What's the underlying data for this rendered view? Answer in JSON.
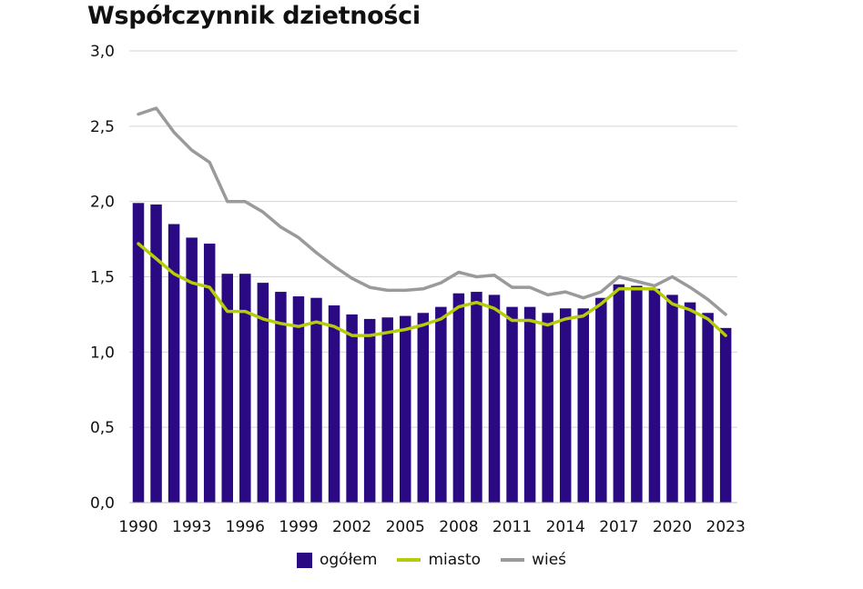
{
  "chart_data": {
    "type": "bar",
    "title": "Współczynnik dzietności",
    "xlabel": "",
    "ylabel": "",
    "ylim": [
      0,
      3.0
    ],
    "y_ticks": [
      "0,0",
      "0,5",
      "1,0",
      "1,5",
      "2,0",
      "2,5",
      "3,0"
    ],
    "x_tick_labels": [
      "1990",
      "1993",
      "1996",
      "1999",
      "2002",
      "2005",
      "2008",
      "2011",
      "2014",
      "2017",
      "2020",
      "2023"
    ],
    "categories": [
      1990,
      1991,
      1992,
      1993,
      1994,
      1995,
      1996,
      1997,
      1998,
      1999,
      2000,
      2001,
      2002,
      2003,
      2004,
      2005,
      2006,
      2007,
      2008,
      2009,
      2010,
      2011,
      2012,
      2013,
      2014,
      2015,
      2016,
      2017,
      2018,
      2019,
      2020,
      2021,
      2022,
      2023
    ],
    "grid": true,
    "legend_position": "bottom",
    "series": [
      {
        "name": "ogółem",
        "kind": "bar",
        "color": "#2a0a83",
        "values": [
          1.99,
          1.98,
          1.85,
          1.76,
          1.72,
          1.52,
          1.52,
          1.46,
          1.4,
          1.37,
          1.36,
          1.31,
          1.25,
          1.22,
          1.23,
          1.24,
          1.26,
          1.3,
          1.39,
          1.4,
          1.38,
          1.3,
          1.3,
          1.26,
          1.29,
          1.29,
          1.36,
          1.45,
          1.44,
          1.42,
          1.38,
          1.33,
          1.26,
          1.16
        ]
      },
      {
        "name": "miasto",
        "kind": "line",
        "color": "#b6cc0a",
        "values": [
          1.72,
          1.62,
          1.52,
          1.46,
          1.43,
          1.27,
          1.27,
          1.22,
          1.19,
          1.17,
          1.2,
          1.17,
          1.11,
          1.11,
          1.13,
          1.15,
          1.18,
          1.22,
          1.3,
          1.33,
          1.29,
          1.21,
          1.21,
          1.18,
          1.22,
          1.24,
          1.32,
          1.42,
          1.42,
          1.42,
          1.32,
          1.28,
          1.22,
          1.11
        ]
      },
      {
        "name": "wieś",
        "kind": "line",
        "color": "#9a9a9a",
        "values": [
          2.58,
          2.62,
          2.46,
          2.34,
          2.26,
          2.0,
          2.0,
          1.93,
          1.83,
          1.76,
          1.66,
          1.57,
          1.49,
          1.43,
          1.41,
          1.41,
          1.42,
          1.46,
          1.53,
          1.5,
          1.51,
          1.43,
          1.43,
          1.38,
          1.4,
          1.36,
          1.4,
          1.5,
          1.47,
          1.44,
          1.5,
          1.43,
          1.35,
          1.25
        ]
      }
    ]
  }
}
